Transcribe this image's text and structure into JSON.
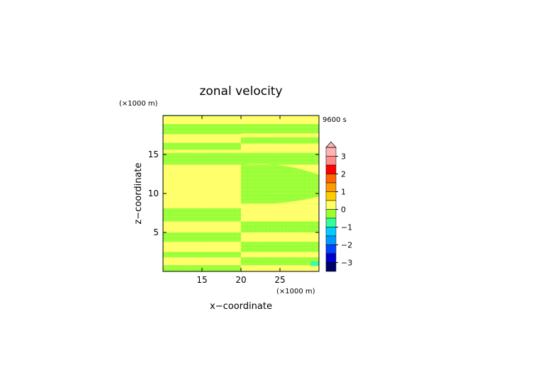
{
  "chart_data": {
    "type": "heatmap",
    "title": "zonal velocity",
    "time_label": "9600 s",
    "xlabel": "x−coordinate",
    "ylabel": "z−coordinate",
    "x_unit": "(×1000 m)",
    "y_unit": "(×1000 m)",
    "xlim": [
      10,
      30
    ],
    "ylim": [
      0,
      20
    ],
    "x_ticks": [
      "15",
      "20",
      "25"
    ],
    "y_ticks": [
      "5",
      "10",
      "15"
    ],
    "colorbar": {
      "tick_labels": [
        "3",
        "2",
        "1",
        "0",
        "−1",
        "−2",
        "−3"
      ],
      "levels": [
        {
          "from": 3.0,
          "to": 3.5,
          "color": "#ffb3b3"
        },
        {
          "from": 2.5,
          "to": 3.0,
          "color": "#ff8c8c"
        },
        {
          "from": 2.0,
          "to": 2.5,
          "color": "#ff0000"
        },
        {
          "from": 1.5,
          "to": 2.0,
          "color": "#ff6600"
        },
        {
          "from": 1.0,
          "to": 1.5,
          "color": "#ff9900"
        },
        {
          "from": 0.5,
          "to": 1.0,
          "color": "#ffcc00"
        },
        {
          "from": 0.0,
          "to": 0.5,
          "color": "#ffff66"
        },
        {
          "from": -0.5,
          "to": 0.0,
          "color": "#99ff33"
        },
        {
          "from": -1.0,
          "to": -0.5,
          "color": "#33ff99"
        },
        {
          "from": -1.5,
          "to": -1.0,
          "color": "#00ccff"
        },
        {
          "from": -2.0,
          "to": -1.5,
          "color": "#0099ff"
        },
        {
          "from": -2.5,
          "to": -2.0,
          "color": "#0044ff"
        },
        {
          "from": -3.0,
          "to": -2.5,
          "color": "#0000cc"
        },
        {
          "from": -3.5,
          "to": -3.0,
          "color": "#000066"
        }
      ]
    },
    "background_color": "#99ff33",
    "regions_left": [
      {
        "z_top": 19.9,
        "z_bottom": 18.9,
        "value": 0.25
      },
      {
        "z_top": 17.6,
        "z_bottom": 16.5,
        "value": 0.25
      },
      {
        "z_top": 15.6,
        "z_bottom": 15.2,
        "value": 0.25
      },
      {
        "z_top": 13.7,
        "z_bottom": 8.1,
        "value": 0.25
      },
      {
        "z_top": 6.4,
        "z_bottom": 5.0,
        "value": 0.25
      },
      {
        "z_top": 3.8,
        "z_bottom": 2.5,
        "value": 0.25
      },
      {
        "z_top": 1.8,
        "z_bottom": 0.8,
        "value": 0.25
      }
    ],
    "regions_right": [
      {
        "z_top": 20.0,
        "z_bottom": 18.9,
        "value": 0.25
      },
      {
        "z_top": 17.7,
        "z_bottom": 17.2,
        "value": 0.25
      },
      {
        "z_top": 16.4,
        "z_bottom": 15.2,
        "value": 0.25
      },
      {
        "z_top": 8.7,
        "z_bottom": 6.4,
        "value": 0.25
      },
      {
        "z_top": 5.0,
        "z_bottom": 3.8,
        "value": 0.25
      },
      {
        "z_top": 2.5,
        "z_bottom": 1.8,
        "value": 0.25
      },
      {
        "z_top": 0.8,
        "z_bottom": 0.0,
        "value": 0.25
      }
    ],
    "lens_left": {
      "z_top_edge": 13.7,
      "z_top_mid": 13.0,
      "z_bottom_edge": 8.1,
      "z_bottom_mid": 8.8
    }
  }
}
